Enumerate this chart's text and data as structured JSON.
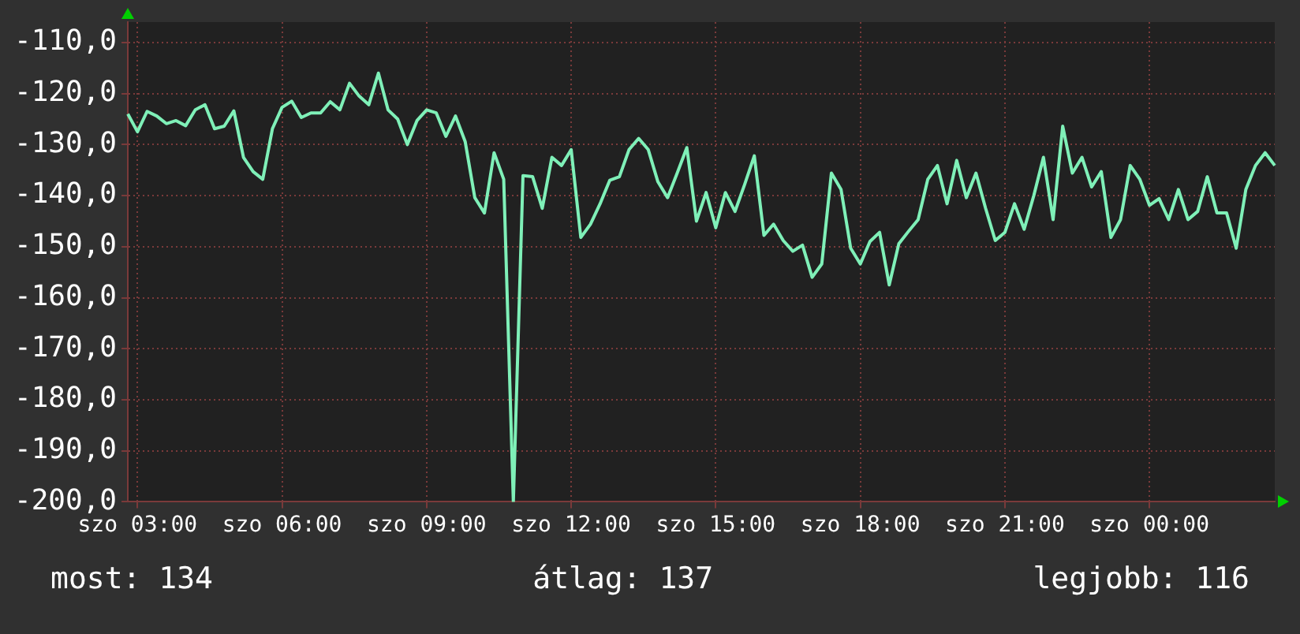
{
  "chart_data": {
    "type": "line",
    "categories": [
      null,
      "szo 03:00",
      null,
      null,
      null,
      null,
      null,
      null,
      null,
      null,
      null,
      null,
      null,
      null,
      null,
      null,
      "szo 06:00",
      null,
      null,
      null,
      null,
      null,
      null,
      null,
      null,
      null,
      null,
      null,
      null,
      null,
      null,
      "szo 09:00",
      null,
      null,
      null,
      null,
      null,
      null,
      null,
      null,
      null,
      null,
      null,
      null,
      null,
      null,
      "szo 12:00",
      null,
      null,
      null,
      null,
      null,
      null,
      null,
      null,
      null,
      null,
      null,
      null,
      null,
      null,
      "szo 15:00",
      null,
      null,
      null,
      null,
      null,
      null,
      null,
      null,
      null,
      null,
      null,
      null,
      null,
      null,
      "szo 18:00",
      null,
      null,
      null,
      null,
      null,
      null,
      null,
      null,
      null,
      null,
      null,
      null,
      null,
      null,
      "szo 21:00",
      null,
      null,
      null,
      null,
      null,
      null,
      null,
      null,
      null,
      null,
      null,
      null,
      null,
      null,
      "szo 00:00",
      null,
      null,
      null,
      null,
      null,
      null,
      null,
      null,
      null,
      null,
      null,
      null,
      null
    ],
    "series": [
      {
        "color": "#7ff0b8",
        "values": [
          -124,
          -127.5,
          -123.5,
          -124.4,
          -125.9,
          -125.3,
          -126.3,
          -123.2,
          -122.2,
          -126.9,
          -126.4,
          -123.4,
          -132.5,
          -135.3,
          -136.8,
          -126.9,
          -122.7,
          -121.5,
          -124.7,
          -123.8,
          -123.8,
          -121.6,
          -123.2,
          -118,
          -120.5,
          -122.2,
          -116,
          -123.2,
          -125,
          -130,
          -125.3,
          -123.2,
          -123.8,
          -128.4,
          -124.4,
          -129.4,
          -140.4,
          -143.4,
          -131.6,
          -136.8,
          -200,
          -136.1,
          -136.3,
          -142.5,
          -132.5,
          -134.1,
          -131,
          -148.2,
          -145.6,
          -141.6,
          -137,
          -136.3,
          -131,
          -128.8,
          -131,
          -137.3,
          -140.4,
          -135.6,
          -130.6,
          -145,
          -139.4,
          -146.3,
          -139.4,
          -143.1,
          -137.8,
          -132.2,
          -147.8,
          -145.6,
          -148.8,
          -150.9,
          -149.7,
          -156,
          -153.4,
          -135.6,
          -138.8,
          -150.3,
          -153.4,
          -149,
          -147.2,
          -157.5,
          -149.4,
          -147,
          -144.7,
          -136.8,
          -134.1,
          -141.6,
          -133.1,
          -140.4,
          -135.6,
          -142.5,
          -148.8,
          -147.2,
          -141.6,
          -146.6,
          -140,
          -132.5,
          -144.7,
          -126.4,
          -135.6,
          -132.5,
          -138.3,
          -135.3,
          -148.2,
          -144.7,
          -134.1,
          -136.8,
          -141.9,
          -140.6,
          -144.7,
          -138.8,
          -144.7,
          -143.1,
          -136.3,
          -143.4,
          -143.4,
          -150.3,
          -138.8,
          -134.1,
          -131.6,
          -134.1
        ]
      }
    ],
    "ylim": [
      -200,
      -106
    ],
    "yticks": [
      {
        "value": -200,
        "label": "-200,0"
      },
      {
        "value": -190,
        "label": "-190,0"
      },
      {
        "value": -180,
        "label": "-180,0"
      },
      {
        "value": -170,
        "label": "-170,0"
      },
      {
        "value": -160,
        "label": "-160,0"
      },
      {
        "value": -150,
        "label": "-150,0"
      },
      {
        "value": -140,
        "label": "-140,0"
      },
      {
        "value": -130,
        "label": "-130,0"
      },
      {
        "value": -120,
        "label": "-120,0"
      },
      {
        "value": -110,
        "label": "-110,0"
      }
    ],
    "grid": true,
    "marker": "none",
    "line_style": "solid",
    "annotations": [
      "most: 134",
      "átlag: 137",
      "legjobb: 116"
    ]
  }
}
